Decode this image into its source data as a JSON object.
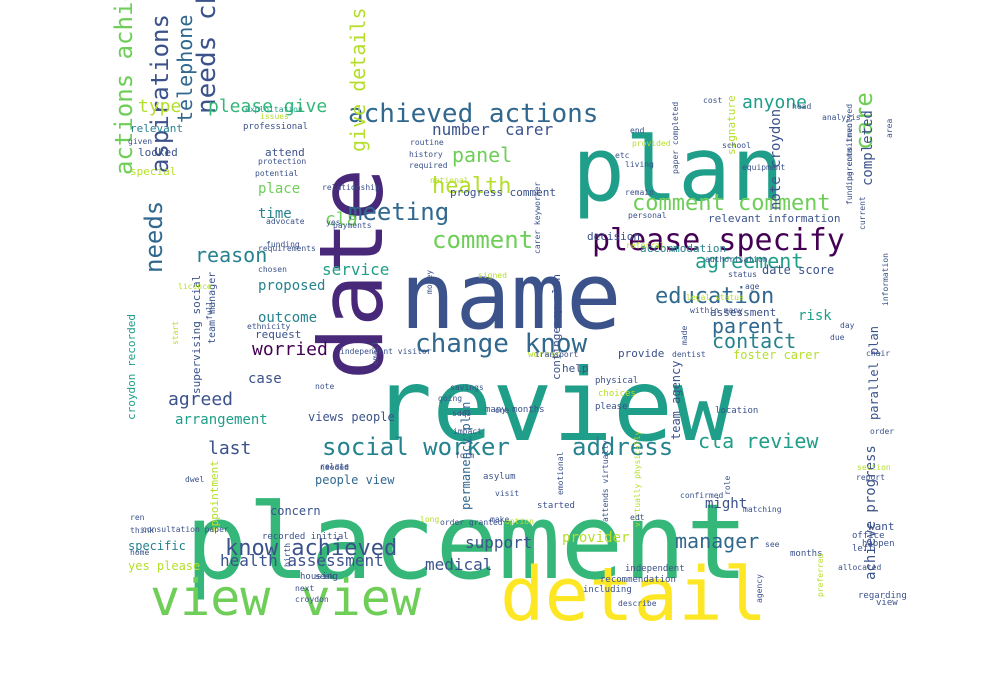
{
  "palette": {
    "purple": "#440154",
    "indigo": "#482878",
    "slate": "#3b528b",
    "steel": "#31688e",
    "teal": "#26828e",
    "sea": "#1f9e89",
    "green": "#35b779",
    "lime": "#6ece58",
    "chartreuse": "#b5de2b",
    "yellow": "#fde725"
  },
  "words": [
    {
      "text": "placement",
      "color": "green"
    },
    {
      "text": "review",
      "color": "sea"
    },
    {
      "text": "name",
      "color": "slate"
    },
    {
      "text": "date",
      "color": "indigo"
    },
    {
      "text": "plan",
      "color": "sea"
    },
    {
      "text": "detail",
      "color": "yellow"
    },
    {
      "text": "view view",
      "color": "lime"
    },
    {
      "text": "please specify",
      "color": "purple"
    },
    {
      "text": "achieved actions",
      "color": "steel"
    },
    {
      "text": "actions achieve",
      "color": "lime"
    },
    {
      "text": "aspirations",
      "color": "slate"
    },
    {
      "text": "needs",
      "color": "steel"
    },
    {
      "text": "needs change",
      "color": "slate"
    },
    {
      "text": "change know",
      "color": "steel"
    },
    {
      "text": "social worker",
      "color": "teal"
    },
    {
      "text": "address",
      "color": "teal"
    },
    {
      "text": "cla review",
      "color": "sea"
    },
    {
      "text": "meeting",
      "color": "steel"
    },
    {
      "text": "comment",
      "color": "lime"
    },
    {
      "text": "comment comment",
      "color": "lime"
    },
    {
      "text": "health",
      "color": "chartreuse"
    },
    {
      "text": "education",
      "color": "steel"
    },
    {
      "text": "agreement",
      "color": "sea"
    },
    {
      "text": "parent",
      "color": "steel"
    },
    {
      "text": "contact",
      "color": "teal"
    },
    {
      "text": "care",
      "color": "lime"
    },
    {
      "text": "reason",
      "color": "teal"
    },
    {
      "text": "know achieved",
      "color": "slate"
    },
    {
      "text": "manager",
      "color": "steel"
    },
    {
      "text": "panel",
      "color": "lime"
    },
    {
      "text": "give details",
      "color": "chartreuse"
    },
    {
      "text": "telephone",
      "color": "steel"
    },
    {
      "text": "anyone",
      "color": "sea"
    },
    {
      "text": "please give",
      "color": "green"
    },
    {
      "text": "type",
      "color": "chartreuse"
    },
    {
      "text": "agreed",
      "color": "slate"
    },
    {
      "text": "worried",
      "color": "purple"
    },
    {
      "text": "last",
      "color": "slate"
    },
    {
      "text": "health assessment",
      "color": "slate"
    },
    {
      "text": "support",
      "color": "slate"
    },
    {
      "text": "medical",
      "color": "slate"
    },
    {
      "text": "number",
      "color": "slate"
    },
    {
      "text": "carer",
      "color": "slate"
    },
    {
      "text": "cla",
      "color": "lime"
    },
    {
      "text": "service",
      "color": "sea"
    },
    {
      "text": "risk",
      "color": "sea"
    },
    {
      "text": "completed",
      "color": "slate"
    },
    {
      "text": "note croydon",
      "color": "slate"
    },
    {
      "text": "place",
      "color": "lime"
    },
    {
      "text": "time",
      "color": "teal"
    },
    {
      "text": "proposed",
      "color": "teal"
    },
    {
      "text": "outcome",
      "color": "teal"
    },
    {
      "text": "case",
      "color": "slate"
    },
    {
      "text": "arrangement",
      "color": "sea"
    },
    {
      "text": "views people",
      "color": "slate"
    },
    {
      "text": "provider",
      "color": "chartreuse"
    },
    {
      "text": "might",
      "color": "slate"
    },
    {
      "text": "yes please",
      "color": "chartreuse"
    },
    {
      "text": "specific",
      "color": "teal"
    },
    {
      "text": "concern",
      "color": "slate"
    },
    {
      "text": "people view",
      "color": "steel"
    },
    {
      "text": "achieve progress",
      "color": "slate"
    },
    {
      "text": "parallel plan",
      "color": "slate"
    },
    {
      "text": "foster carer",
      "color": "chartreuse"
    },
    {
      "text": "date score",
      "color": "slate"
    },
    {
      "text": "accommodation",
      "color": "teal"
    },
    {
      "text": "relevant information",
      "color": "slate"
    },
    {
      "text": "provide",
      "color": "slate"
    },
    {
      "text": "help",
      "color": "slate"
    },
    {
      "text": "team agency",
      "color": "slate"
    },
    {
      "text": "permanency plan",
      "color": "steel"
    },
    {
      "text": "contingency plan",
      "color": "slate"
    },
    {
      "text": "progress comment",
      "color": "slate"
    },
    {
      "text": "decision",
      "color": "slate"
    },
    {
      "text": "croydon recorded",
      "color": "sea"
    },
    {
      "text": "supervising social",
      "color": "slate"
    },
    {
      "text": "team manager",
      "color": "slate"
    },
    {
      "text": "relevant",
      "color": "teal"
    },
    {
      "text": "looked",
      "color": "slate"
    },
    {
      "text": "special",
      "color": "chartreuse"
    },
    {
      "text": "attend",
      "color": "slate"
    },
    {
      "text": "request",
      "color": "slate"
    },
    {
      "text": "assessment",
      "color": "slate"
    },
    {
      "text": "want",
      "color": "slate"
    },
    {
      "text": "signature",
      "color": "chartreuse"
    },
    {
      "text": "appointment",
      "color": "chartreuse"
    },
    {
      "text": "recorded initial",
      "color": "slate"
    },
    {
      "text": "housing",
      "color": "slate"
    },
    {
      "text": "including",
      "color": "slate"
    },
    {
      "text": "independent",
      "color": "slate"
    },
    {
      "text": "recommendation",
      "color": "slate"
    },
    {
      "text": "started",
      "color": "slate"
    },
    {
      "text": "location",
      "color": "slate"
    },
    {
      "text": "months",
      "color": "slate"
    },
    {
      "text": "office",
      "color": "slate"
    },
    {
      "text": "left",
      "color": "slate"
    },
    {
      "text": "happen",
      "color": "slate"
    },
    {
      "text": "regarding",
      "color": "slate"
    },
    {
      "text": "view",
      "color": "slate"
    },
    {
      "text": "physical",
      "color": "slate"
    },
    {
      "text": "choices",
      "color": "chartreuse"
    },
    {
      "text": "please",
      "color": "slate"
    },
    {
      "text": "worker",
      "color": "chartreuse"
    },
    {
      "text": "transport",
      "color": "slate"
    },
    {
      "text": "asylum",
      "color": "slate"
    },
    {
      "text": "many months",
      "color": "slate"
    },
    {
      "text": "savings",
      "color": "slate"
    },
    {
      "text": "going",
      "color": "slate"
    },
    {
      "text": "impact",
      "color": "slate"
    },
    {
      "text": "sdqs",
      "color": "slate"
    },
    {
      "text": "needed",
      "color": "slate"
    },
    {
      "text": "consultation paper",
      "color": "slate"
    },
    {
      "text": "think",
      "color": "slate"
    },
    {
      "text": "home",
      "color": "slate"
    },
    {
      "text": "given",
      "color": "slate"
    },
    {
      "text": "professional",
      "color": "slate"
    },
    {
      "text": "exploitation",
      "color": "sea"
    },
    {
      "text": "protection",
      "color": "slate"
    },
    {
      "text": "potential",
      "color": "slate"
    },
    {
      "text": "advocate",
      "color": "slate"
    },
    {
      "text": "funding",
      "color": "slate"
    },
    {
      "text": "chosen",
      "color": "slate"
    },
    {
      "text": "ethnicity",
      "color": "slate"
    },
    {
      "text": "payments",
      "color": "slate"
    },
    {
      "text": "routine",
      "color": "slate"
    },
    {
      "text": "history",
      "color": "slate"
    },
    {
      "text": "required",
      "color": "slate"
    },
    {
      "text": "etc",
      "color": "slate"
    },
    {
      "text": "living",
      "color": "slate"
    },
    {
      "text": "end",
      "color": "slate"
    },
    {
      "text": "cost",
      "color": "slate"
    },
    {
      "text": "school",
      "color": "slate"
    },
    {
      "text": "equipment",
      "color": "slate"
    },
    {
      "text": "head",
      "color": "slate"
    },
    {
      "text": "analysis",
      "color": "slate"
    },
    {
      "text": "area",
      "color": "slate"
    },
    {
      "text": "authorisation",
      "color": "slate"
    },
    {
      "text": "status",
      "color": "slate"
    },
    {
      "text": "age",
      "color": "slate"
    },
    {
      "text": "legal status",
      "color": "chartreuse"
    },
    {
      "text": "within many",
      "color": "slate"
    },
    {
      "text": "dentist",
      "color": "slate"
    },
    {
      "text": "made",
      "color": "slate"
    },
    {
      "text": "independent visitor",
      "color": "slate"
    },
    {
      "text": "email",
      "color": "slate"
    },
    {
      "text": "note",
      "color": "slate"
    },
    {
      "text": "relate",
      "color": "slate"
    },
    {
      "text": "section",
      "color": "chartreuse"
    },
    {
      "text": "report",
      "color": "slate"
    },
    {
      "text": "order",
      "color": "slate"
    },
    {
      "text": "chair",
      "color": "slate"
    },
    {
      "text": "day",
      "color": "slate"
    },
    {
      "text": "due",
      "color": "slate"
    },
    {
      "text": "form",
      "color": "slate"
    },
    {
      "text": "option",
      "color": "chartreuse"
    },
    {
      "text": "confirmed",
      "color": "slate"
    },
    {
      "text": "see",
      "color": "slate"
    },
    {
      "text": "allocated",
      "color": "slate"
    },
    {
      "text": "preferred",
      "color": "chartreuse"
    },
    {
      "text": "describe",
      "color": "slate"
    },
    {
      "text": "croydon",
      "color": "slate"
    },
    {
      "text": "next",
      "color": "slate"
    },
    {
      "text": "personal",
      "color": "slate"
    },
    {
      "text": "referral",
      "color": "chartreuse"
    },
    {
      "text": "signed",
      "color": "chartreuse"
    },
    {
      "text": "money",
      "color": "slate"
    },
    {
      "text": "licence",
      "color": "chartreuse"
    },
    {
      "text": "national",
      "color": "chartreuse"
    },
    {
      "text": "full",
      "color": "slate"
    },
    {
      "text": "birth",
      "color": "slate"
    },
    {
      "text": "relationship",
      "color": "slate"
    },
    {
      "text": "requirements",
      "color": "slate"
    },
    {
      "text": "paper completed",
      "color": "slate"
    },
    {
      "text": "carer keyworker",
      "color": "slate"
    },
    {
      "text": "funding commitment",
      "color": "slate"
    },
    {
      "text": "parents involved",
      "color": "slate"
    },
    {
      "text": "information",
      "color": "slate"
    },
    {
      "text": "current",
      "color": "slate"
    },
    {
      "text": "agency",
      "color": "slate"
    },
    {
      "text": "virtually physically",
      "color": "chartreuse"
    },
    {
      "text": "attends virtually",
      "color": "slate"
    },
    {
      "text": "emotional",
      "color": "slate"
    },
    {
      "text": "visit",
      "color": "slate"
    },
    {
      "text": "role",
      "color": "slate"
    },
    {
      "text": "matching",
      "color": "slate"
    },
    {
      "text": "issues",
      "color": "chartreuse"
    },
    {
      "text": "provided",
      "color": "chartreuse"
    },
    {
      "text": "remain",
      "color": "slate"
    },
    {
      "text": "one",
      "color": "slate"
    },
    {
      "text": "make",
      "color": "slate"
    },
    {
      "text": "ren",
      "color": "slate"
    },
    {
      "text": "edt",
      "color": "slate"
    },
    {
      "text": "dwel",
      "color": "slate"
    },
    {
      "text": "seek",
      "color": "slate"
    },
    {
      "text": "long",
      "color": "chartreuse"
    },
    {
      "text": "start",
      "color": "chartreuse"
    },
    {
      "text": "yes",
      "color": "slate"
    },
    {
      "text": "order granted",
      "color": "slate"
    },
    {
      "text": "separate",
      "color": "chartreuse"
    },
    {
      "text": "initial health",
      "color": "slate"
    },
    {
      "text": "love",
      "color": "chartreuse"
    },
    {
      "text": "safe",
      "color": "chartreuse"
    }
  ]
}
